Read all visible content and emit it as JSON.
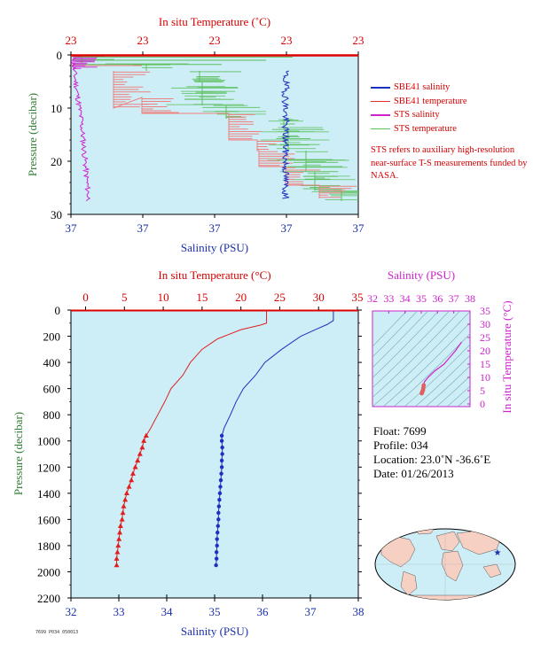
{
  "chart_data": [
    {
      "type": "line",
      "panel": "top",
      "title": "",
      "top_axis_label": "In situ Temperature (˚C)",
      "top_axis_ticks": [
        "23",
        "23",
        "23",
        "23",
        "23"
      ],
      "xlabel": "Salinity (PSU)",
      "x_ticks": [
        "37",
        "37",
        "37",
        "37",
        "37"
      ],
      "ylabel": "Pressure (decibar)",
      "y_ticks": [
        "0",
        "10",
        "20",
        "30"
      ],
      "ylim": [
        30,
        0
      ],
      "legend_position": "right",
      "series": [
        {
          "name": "SBE41 salinity",
          "color": "#1f2fbf",
          "pressure": [
            4,
            7,
            10,
            13,
            16,
            19,
            22,
            25,
            27
          ]
        },
        {
          "name": "SBE41 temperature",
          "color": "#e03030",
          "pressure": [
            0,
            3,
            6,
            9,
            12,
            15,
            18,
            21,
            24,
            27
          ]
        },
        {
          "name": "STS salinity",
          "color": "#d020d0",
          "pressure": [
            1,
            3,
            5,
            8,
            11,
            14,
            17,
            20,
            23,
            26,
            27.5
          ]
        },
        {
          "name": "STS temperature",
          "color": "#5cbf5c",
          "pressure": [
            0.5,
            2,
            4,
            6,
            8,
            10,
            12,
            14,
            16,
            18,
            20,
            22,
            24,
            26,
            27
          ]
        }
      ],
      "note": "STS refers to auxiliary high-resolution near-surface T-S measurements funded by NASA."
    },
    {
      "type": "line",
      "panel": "profile",
      "top_axis_label": "In situ Temperature (°C)",
      "top_axis_ticks": [
        0,
        5,
        10,
        15,
        20,
        25,
        30,
        35
      ],
      "xlabel": "Salinity (PSU)",
      "x_ticks": [
        32,
        33,
        34,
        35,
        36,
        37,
        38
      ],
      "ylabel": "Pressure (decibar)",
      "y_ticks": [
        0,
        200,
        400,
        600,
        800,
        1000,
        1200,
        1400,
        1600,
        1800,
        2000,
        2200
      ],
      "xlim": [
        32,
        38
      ],
      "ylim": [
        2200,
        0
      ],
      "series": [
        {
          "name": "temperature",
          "color": "#e02020",
          "points": [
            [
              23.3,
              0
            ],
            [
              23.3,
              100
            ],
            [
              22.5,
              115
            ],
            [
              20,
              150
            ],
            [
              17,
              220
            ],
            [
              15,
              300
            ],
            [
              13.5,
              400
            ],
            [
              12.5,
              500
            ],
            [
              11,
              600
            ],
            [
              10.2,
              700
            ],
            [
              9.3,
              800
            ],
            [
              8.4,
              900
            ],
            [
              7.8,
              960
            ],
            [
              7.5,
              1000
            ],
            [
              7.3,
              1050
            ],
            [
              7,
              1100
            ],
            [
              6.7,
              1150
            ],
            [
              6.4,
              1200
            ],
            [
              6.1,
              1250
            ],
            [
              5.9,
              1300
            ],
            [
              5.6,
              1350
            ],
            [
              5.3,
              1400
            ],
            [
              5.1,
              1450
            ],
            [
              4.9,
              1500
            ],
            [
              4.8,
              1550
            ],
            [
              4.7,
              1600
            ],
            [
              4.5,
              1650
            ],
            [
              4.4,
              1700
            ],
            [
              4.3,
              1750
            ],
            [
              4.2,
              1800
            ],
            [
              4.1,
              1850
            ],
            [
              4,
              1900
            ],
            [
              4,
              1950
            ]
          ]
        },
        {
          "name": "salinity",
          "color": "#1f2fbf",
          "points": [
            [
              37.48,
              0
            ],
            [
              37.48,
              80
            ],
            [
              37.35,
              110
            ],
            [
              37.1,
              150
            ],
            [
              36.8,
              200
            ],
            [
              36.4,
              300
            ],
            [
              36.05,
              400
            ],
            [
              35.85,
              500
            ],
            [
              35.6,
              600
            ],
            [
              35.45,
              700
            ],
            [
              35.33,
              800
            ],
            [
              35.2,
              900
            ],
            [
              35.15,
              960
            ],
            [
              35.15,
              1000
            ],
            [
              35.16,
              1050
            ],
            [
              35.16,
              1100
            ],
            [
              35.15,
              1150
            ],
            [
              35.15,
              1200
            ],
            [
              35.14,
              1250
            ],
            [
              35.13,
              1300
            ],
            [
              35.12,
              1350
            ],
            [
              35.11,
              1400
            ],
            [
              35.1,
              1450
            ],
            [
              35.09,
              1500
            ],
            [
              35.08,
              1550
            ],
            [
              35.08,
              1600
            ],
            [
              35.07,
              1650
            ],
            [
              35.06,
              1700
            ],
            [
              35.05,
              1750
            ],
            [
              35.05,
              1800
            ],
            [
              35.04,
              1850
            ],
            [
              35.04,
              1900
            ],
            [
              35.03,
              1950
            ]
          ]
        }
      ]
    },
    {
      "type": "scatter",
      "panel": "ts",
      "top_axis_label": "Salinity (PSU)",
      "x_ticks": [
        32,
        33,
        34,
        35,
        36,
        37,
        38
      ],
      "xlim": [
        32,
        38
      ],
      "right_axis_label": "In situ Temperature (°C)",
      "y_ticks": [
        0,
        5,
        10,
        15,
        20,
        25,
        30,
        35
      ],
      "ylim": [
        -1,
        35
      ],
      "series": [
        {
          "name": "profile",
          "color": "#d020d0",
          "points": [
            [
              37.48,
              23.3
            ],
            [
              37.1,
              20
            ],
            [
              36.4,
              15
            ],
            [
              35.85,
              12.5
            ],
            [
              35.45,
              10.2
            ],
            [
              35.2,
              8.4
            ],
            [
              35.15,
              7.3
            ]
          ]
        },
        {
          "name": "deep",
          "color": "#e06060",
          "points": [
            [
              35.15,
              7.0
            ],
            [
              35.13,
              6.1
            ],
            [
              35.11,
              5.3
            ],
            [
              35.08,
              4.8
            ],
            [
              35.06,
              4.4
            ],
            [
              35.04,
              4.1
            ],
            [
              35.03,
              4.0
            ]
          ]
        }
      ]
    }
  ],
  "float_info": {
    "float": "Float:  7699",
    "profile": "Profile:  034",
    "location": "Location:  23.0˚N  -36.6˚E",
    "date": "Date:  01/26/2013"
  },
  "colors": {
    "plot_bg": "#cdeef6",
    "temperature": "#e02020",
    "salinity": "#1f2fbf",
    "axis_red": "#d40000",
    "axis_blue": "#1a2fa8",
    "axis_green": "#2e7d32",
    "magenta": "#cc22cc"
  },
  "map": {
    "marker": "star"
  },
  "footer_code": "7699 P034 050013"
}
